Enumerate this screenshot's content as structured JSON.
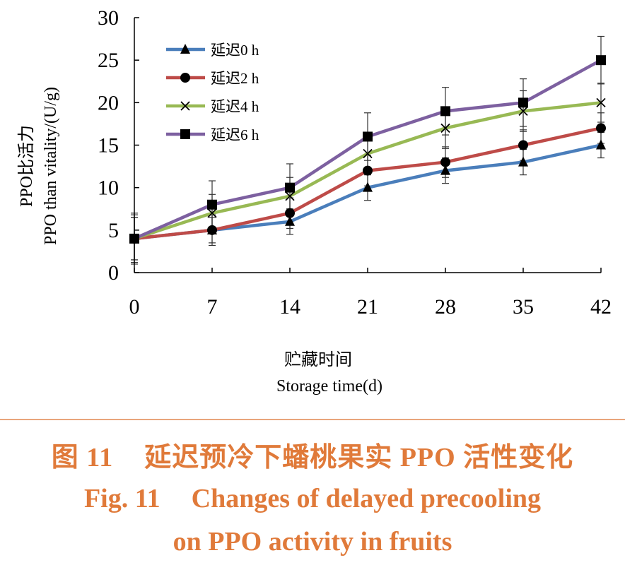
{
  "chart_data": {
    "type": "line",
    "x": [
      0,
      7,
      14,
      21,
      28,
      35,
      42
    ],
    "xlabel_cn": "贮藏时间",
    "xlabel_en": "Storage time(d)",
    "ylabel_cn": "PPO比活力",
    "ylabel_en": "PPO than vitality/(U/g)",
    "xlim": [
      0,
      42
    ],
    "ylim": [
      0,
      30
    ],
    "yticks": [
      0,
      5,
      10,
      15,
      20,
      25,
      30
    ],
    "grid": false,
    "legend_position": "top-left",
    "series": [
      {
        "name": "延迟0 h",
        "color": "#4a7ebb",
        "marker": "triangle",
        "values": [
          4,
          5,
          6,
          10,
          12,
          13,
          15
        ],
        "errors": [
          2.5,
          1.5,
          1.5,
          1.5,
          1.5,
          1.5,
          1.5
        ]
      },
      {
        "name": "延迟2 h",
        "color": "#be4b48",
        "marker": "circle",
        "values": [
          4,
          5,
          7,
          12,
          13,
          15,
          17
        ],
        "errors": [
          2.5,
          1.8,
          1.8,
          1.8,
          1.8,
          1.8,
          1.8
        ]
      },
      {
        "name": "延迟4 h",
        "color": "#98b954",
        "marker": "cross",
        "values": [
          4,
          7,
          9,
          14,
          17,
          19,
          20
        ],
        "errors": [
          2.8,
          2.2,
          2.2,
          2.3,
          2.4,
          2.4,
          2.3
        ]
      },
      {
        "name": "延迟6 h",
        "color": "#7d60a0",
        "marker": "square",
        "values": [
          4,
          8,
          10,
          16,
          19,
          20,
          25
        ],
        "errors": [
          3.0,
          2.8,
          2.8,
          2.8,
          2.8,
          2.8,
          2.8
        ]
      }
    ]
  },
  "caption": {
    "cn_label": "图 11",
    "cn_text": "延迟预冷下蟠桃果实 PPO 活性变化",
    "en_label": "Fig. 11",
    "en_line1": "Changes of delayed precooling",
    "en_line2": "on PPO activity in fruits"
  }
}
